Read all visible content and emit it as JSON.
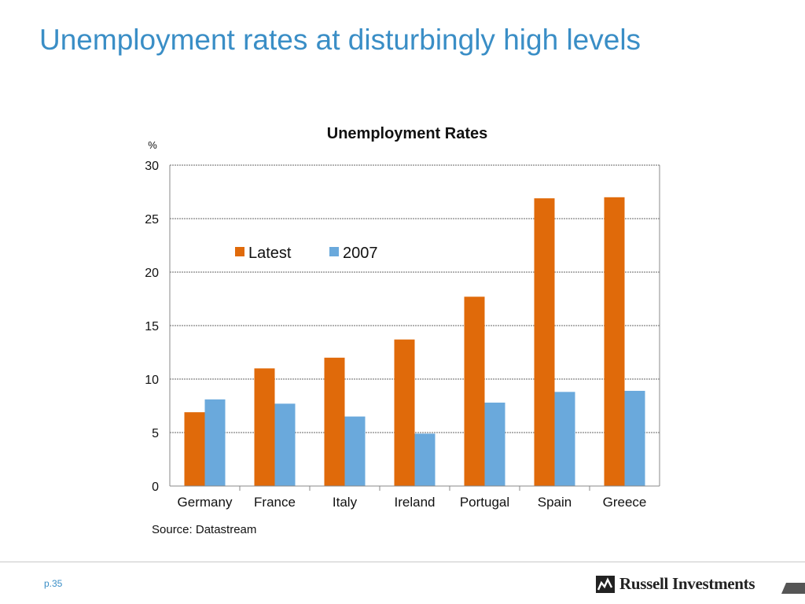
{
  "slide": {
    "title": "Unemployment rates at disturbingly high levels",
    "page_label": "p.35",
    "logo_text": "Russell Investments",
    "title_color": "#3a8ec6"
  },
  "chart_data": {
    "type": "bar",
    "title": "Unemployment Rates",
    "ylabel": "%",
    "xlabel": "",
    "ylim": [
      0,
      30
    ],
    "yticks": [
      0,
      5,
      10,
      15,
      20,
      25,
      30
    ],
    "grid": true,
    "legend_position": "top-left",
    "categories": [
      "Germany",
      "France",
      "Italy",
      "Ireland",
      "Portugal",
      "Spain",
      "Greece"
    ],
    "series": [
      {
        "name": "Latest",
        "color": "#e06a0a",
        "values": [
          6.9,
          11.0,
          12.0,
          13.7,
          17.7,
          26.9,
          27.0
        ]
      },
      {
        "name": "2007",
        "color": "#6aa9dc",
        "values": [
          8.1,
          7.7,
          6.5,
          4.9,
          7.8,
          8.8,
          8.9
        ]
      }
    ],
    "source": "Source: Datastream"
  }
}
